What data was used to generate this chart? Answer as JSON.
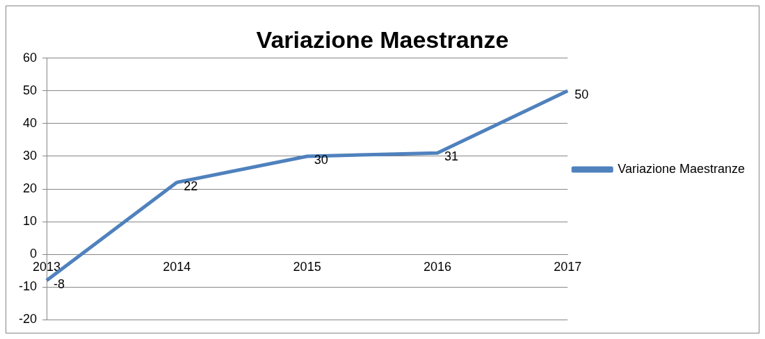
{
  "chart_data": {
    "type": "line",
    "title": "Variazione Maestranze",
    "categories": [
      "2013",
      "2014",
      "2015",
      "2016",
      "2017"
    ],
    "series": [
      {
        "name": "Variazione Maestranze",
        "color": "#4f81bd",
        "values": [
          -8,
          22,
          30,
          31,
          50
        ]
      }
    ],
    "ylim": [
      -20,
      60
    ],
    "yticks": [
      -20,
      -10,
      0,
      10,
      20,
      30,
      40,
      50,
      60
    ],
    "grid": "y",
    "legend": "right",
    "data_labels": true,
    "marker": "none"
  }
}
